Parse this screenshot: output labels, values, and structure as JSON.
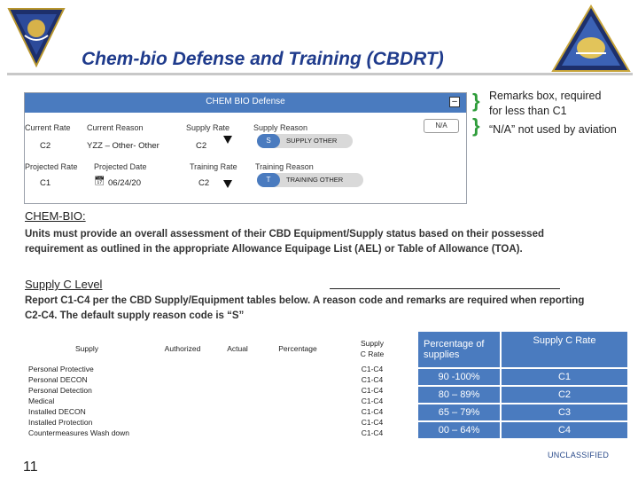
{
  "header": {
    "title": "Chem-bio Defense and Training (CBDRT)"
  },
  "panel": {
    "title": "CHEM BIO Defense",
    "minimize_label": "–",
    "na_label": "N/A",
    "labels": {
      "current_rate": "Current Rate",
      "current_reason": "Current Reason",
      "supply_rate": "Supply Rate",
      "supply_reason": "Supply Reason",
      "projected_rate": "Projected Rate",
      "projected_date": "Projected Date",
      "training_rate": "Training Rate",
      "training_reason": "Training Reason"
    },
    "values": {
      "current_rate": "C2",
      "current_reason": "YZZ – Other- Other",
      "supply_rate": "C2",
      "supply_reason_code": "S",
      "supply_reason_text": "SUPPLY OTHER",
      "projected_rate": "C1",
      "projected_date": "06/24/20",
      "training_rate": "C2",
      "training_reason_code": "T",
      "training_reason_text": "TRAINING OTHER"
    }
  },
  "remarks": {
    "line1": "Remarks box, required",
    "line2": "for less than C1",
    "line3": "“N/A” not used by aviation"
  },
  "chembio": {
    "heading": "CHEM-BIO:",
    "para_line1": "Units must provide an overall assessment of their CBD Equipment/Supply status based on their possessed",
    "para_line2": "requirement as outlined in the appropriate Allowance Equipage List (AEL) or Table of Allowance (TOA)."
  },
  "supply_level": {
    "heading": "Supply C Level",
    "para_line1": "Report C1-C4 per the CBD Supply/Equipment tables below. A reason code and remarks are required when reporting",
    "para_line2": "C2-C4. The default supply reason code is “S”"
  },
  "supply_table": {
    "headers": [
      "Supply",
      "Authorized",
      "Actual",
      "Percentage",
      "Supply",
      "C Rate"
    ],
    "rows": [
      {
        "item": "Personal Protective",
        "rate": "C1-C4"
      },
      {
        "item": "Personal DECON",
        "rate": "C1-C4"
      },
      {
        "item": "Personal Detection",
        "rate": "C1-C4"
      },
      {
        "item": "Medical",
        "rate": "C1-C4"
      },
      {
        "item": "Installed DECON",
        "rate": "C1-C4"
      },
      {
        "item": "Installed Protection",
        "rate": "C1-C4"
      },
      {
        "item": "Countermeasures Wash down",
        "rate": "C1-C4"
      }
    ]
  },
  "rate_table": {
    "headers": [
      "Percentage of supplies",
      "Supply C Rate"
    ],
    "rows": [
      {
        "pct": "90 -100%",
        "rate": "C1"
      },
      {
        "pct": "80 – 89%",
        "rate": "C2"
      },
      {
        "pct": "65 – 79%",
        "rate": "C3"
      },
      {
        "pct": "00 – 64%",
        "rate": "C4"
      }
    ]
  },
  "footer": {
    "page_number": "11",
    "classification": "UNCLASSIFIED"
  },
  "colors": {
    "title_blue": "#1f3b8c",
    "panel_blue": "#4a7bbf",
    "brace_green": "#2e9c3a"
  }
}
